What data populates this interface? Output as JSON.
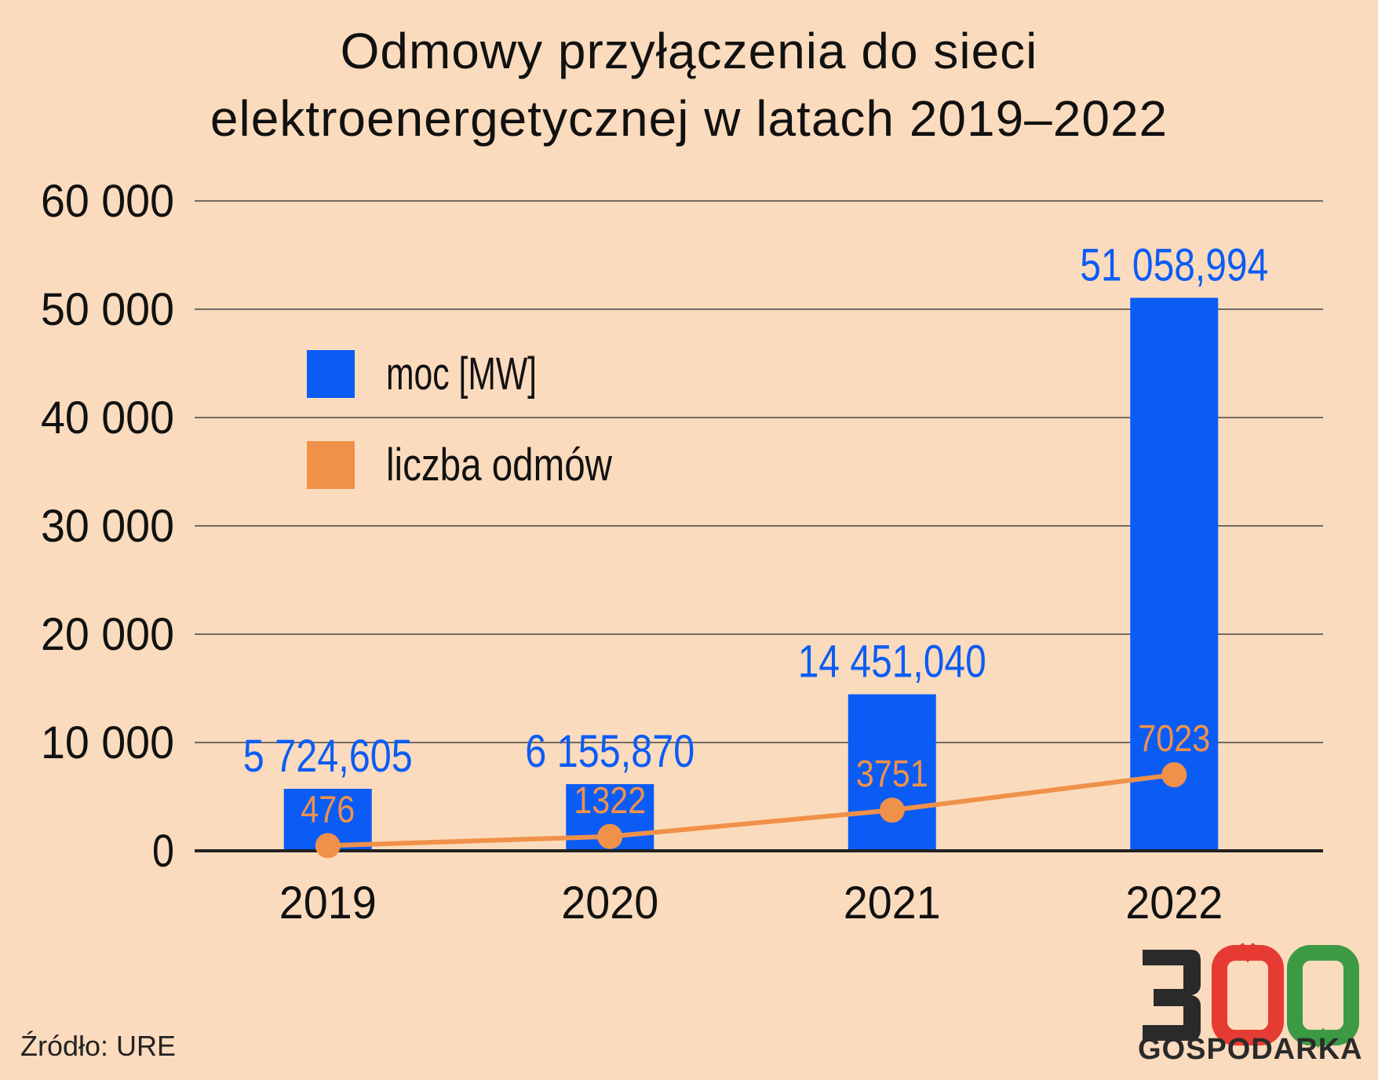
{
  "title": {
    "line1": "Odmowy przyłączenia do sieci",
    "line2": "elektroenergetycznej w latach 2019–2022"
  },
  "source": "Źródło: URE",
  "logo": {
    "number": "300",
    "name": "GOSPODARKA"
  },
  "colors": {
    "background": "#fbdbbd",
    "bar": "#0b5cf5",
    "line": "#f0914a",
    "logo_dark": "#2a2a2a",
    "logo_red": "#e53b33",
    "logo_green": "#3d9a44"
  },
  "chart_data": {
    "type": "bar",
    "categories": [
      "2019",
      "2020",
      "2021",
      "2022"
    ],
    "ylim": [
      0,
      60000
    ],
    "yticks": [
      0,
      10000,
      20000,
      30000,
      40000,
      50000,
      60000
    ],
    "ytick_labels": [
      "0",
      "10 000",
      "20 000",
      "30 000",
      "40 000",
      "50 000",
      "60 000"
    ],
    "grid": true,
    "legend_position": "top-left",
    "series": [
      {
        "name": "moc [MW]",
        "type": "bar",
        "values": [
          5724.605,
          6155.87,
          14451.04,
          51058.994
        ],
        "labels": [
          "5 724,605",
          "6 155,870",
          "14 451,040",
          "51 058,994"
        ]
      },
      {
        "name": "liczba odmów",
        "type": "line",
        "values": [
          476,
          1322,
          3751,
          7023
        ],
        "labels": [
          "476",
          "1322",
          "3751",
          "7023"
        ]
      }
    ]
  }
}
